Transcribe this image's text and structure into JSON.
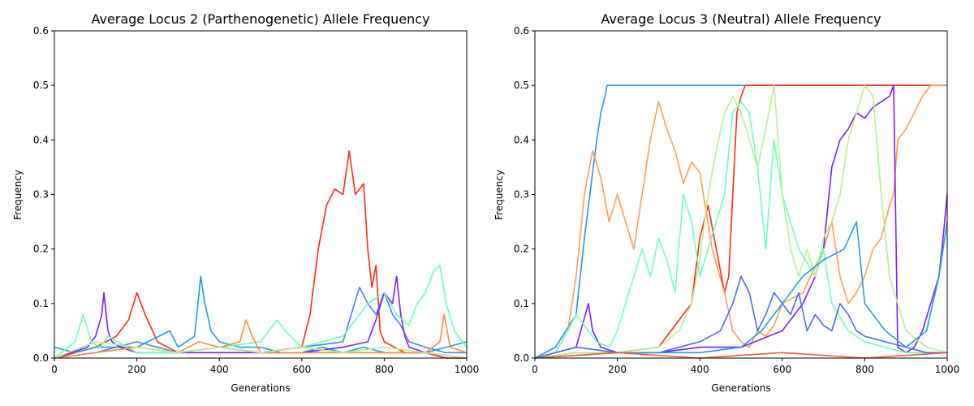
{
  "chart_data": [
    {
      "type": "line",
      "title": "Average Locus 2 (Parthenogenetic) Allele Frequency",
      "xlabel": "Generations",
      "ylabel": "Frequency",
      "xlim": [
        0,
        1000
      ],
      "ylim": [
        0,
        0.6
      ],
      "xticks": [
        "0",
        "200",
        "400",
        "600",
        "800",
        "1000"
      ],
      "yticks": [
        "0.0",
        "0.1",
        "0.2",
        "0.3",
        "0.4",
        "0.5",
        "0.6"
      ],
      "grid": false,
      "series": [
        {
          "color": "#ff2a10",
          "x": [
            0,
            50,
            100,
            150,
            180,
            200,
            220,
            250,
            300,
            400,
            500,
            600,
            620,
            640,
            660,
            680,
            700,
            715,
            730,
            750,
            760,
            770,
            780,
            790,
            800,
            850,
            900,
            950,
            1000
          ],
          "y": [
            0,
            0.01,
            0.02,
            0.04,
            0.07,
            0.12,
            0.08,
            0.03,
            0.01,
            0.02,
            0.01,
            0.02,
            0.08,
            0.2,
            0.28,
            0.31,
            0.3,
            0.38,
            0.3,
            0.32,
            0.2,
            0.13,
            0.17,
            0.05,
            0.03,
            0.01,
            0.01,
            0,
            0
          ]
        },
        {
          "color": "#4a7fff",
          "x": [
            0,
            100,
            200,
            250,
            300,
            400,
            500,
            600,
            700,
            740,
            760,
            780,
            800,
            820,
            840,
            860,
            900,
            950,
            1000
          ],
          "y": [
            0,
            0.01,
            0.03,
            0.02,
            0.01,
            0.02,
            0.01,
            0.02,
            0.03,
            0.13,
            0.1,
            0.08,
            0.12,
            0.08,
            0.06,
            0.03,
            0.02,
            0.01,
            0.01
          ]
        },
        {
          "color": "#1a9fe8",
          "x": [
            0,
            50,
            100,
            200,
            280,
            300,
            340,
            355,
            365,
            380,
            400,
            450,
            500,
            550,
            600,
            650,
            700,
            750,
            800,
            850,
            900,
            950,
            1000
          ],
          "y": [
            0.02,
            0.01,
            0.02,
            0.02,
            0.05,
            0.02,
            0.04,
            0.15,
            0.1,
            0.05,
            0.03,
            0.02,
            0.02,
            0.01,
            0.01,
            0.02,
            0.01,
            0.02,
            0.01,
            0.01,
            0.01,
            0.02,
            0.03
          ]
        },
        {
          "color": "#7a1fff",
          "x": [
            0,
            80,
            100,
            115,
            120,
            130,
            140,
            160,
            200,
            300,
            400,
            500,
            600,
            700,
            760,
            780,
            800,
            820,
            830,
            840,
            850,
            860,
            900,
            1000
          ],
          "y": [
            0,
            0.02,
            0.04,
            0.08,
            0.12,
            0.05,
            0.03,
            0.02,
            0.01,
            0.01,
            0.01,
            0.01,
            0.01,
            0.02,
            0.03,
            0.07,
            0.12,
            0.1,
            0.15,
            0.08,
            0.04,
            0.02,
            0.01,
            0
          ]
        },
        {
          "color": "#66ffb3",
          "x": [
            0,
            50,
            70,
            90,
            110,
            130,
            200,
            300,
            400,
            500,
            540,
            560,
            600,
            700,
            760,
            800,
            830,
            860,
            880,
            900,
            920,
            935,
            950,
            970,
            1000
          ],
          "y": [
            0,
            0.03,
            0.08,
            0.03,
            0.02,
            0.04,
            0.01,
            0.01,
            0.02,
            0.03,
            0.07,
            0.05,
            0.02,
            0.04,
            0.1,
            0.12,
            0.08,
            0.06,
            0.1,
            0.12,
            0.16,
            0.17,
            0.1,
            0.05,
            0.02
          ]
        },
        {
          "color": "#ff8a3a",
          "x": [
            0,
            100,
            200,
            300,
            350,
            400,
            450,
            465,
            480,
            500,
            600,
            700,
            800,
            900,
            935,
            945,
            960,
            1000
          ],
          "y": [
            0,
            0.01,
            0.02,
            0.01,
            0.03,
            0.02,
            0.03,
            0.07,
            0.04,
            0.01,
            0.01,
            0.01,
            0.01,
            0.01,
            0.03,
            0.08,
            0.02,
            0.01
          ]
        },
        {
          "color": "#b8f08a",
          "x": [
            0,
            100,
            200,
            300,
            400,
            500,
            600,
            700,
            800,
            900,
            1000
          ],
          "y": [
            0,
            0.03,
            0.02,
            0.01,
            0.02,
            0.01,
            0.02,
            0.01,
            0.02,
            0.01,
            0
          ]
        }
      ]
    },
    {
      "type": "line",
      "title": "Average Locus 3 (Neutral) Allele Frequency",
      "xlabel": "Generations",
      "ylabel": "Frequency",
      "xlim": [
        0,
        1000
      ],
      "ylim": [
        0,
        0.6
      ],
      "xticks": [
        "0",
        "200",
        "400",
        "600",
        "800",
        "1000"
      ],
      "yticks": [
        "0.0",
        "0.1",
        "0.2",
        "0.3",
        "0.4",
        "0.5",
        "0.6"
      ],
      "grid": false,
      "series": [
        {
          "color": "#2a8ff0",
          "x": [
            0,
            50,
            100,
            120,
            140,
            150,
            160,
            170,
            175,
            180,
            300,
            500,
            600,
            800,
            1000
          ],
          "y": [
            0,
            0.02,
            0.08,
            0.22,
            0.34,
            0.4,
            0.45,
            0.48,
            0.5,
            0.5,
            0.5,
            0.5,
            0.5,
            0.5,
            0.5
          ]
        },
        {
          "color": "#ff2a10",
          "x": [
            0,
            100,
            200,
            300,
            380,
            400,
            420,
            440,
            460,
            470,
            480,
            490,
            500,
            510,
            520,
            600,
            800,
            1000
          ],
          "y": [
            0,
            0.01,
            0.01,
            0.02,
            0.1,
            0.22,
            0.28,
            0.2,
            0.12,
            0.15,
            0.3,
            0.45,
            0.48,
            0.5,
            0.5,
            0.5,
            0.5,
            0.5
          ]
        },
        {
          "color": "#ff9a50",
          "x": [
            0,
            50,
            80,
            100,
            120,
            140,
            160,
            180,
            200,
            220,
            240,
            260,
            280,
            300,
            320,
            340,
            360,
            380,
            400,
            430,
            460,
            480,
            500,
            520,
            540,
            560,
            580,
            600,
            650,
            700,
            720,
            740,
            760,
            780,
            800,
            820,
            840,
            860,
            870,
            880,
            900,
            920,
            940,
            960,
            980,
            1000
          ],
          "y": [
            0,
            0.01,
            0.05,
            0.15,
            0.3,
            0.38,
            0.33,
            0.25,
            0.3,
            0.25,
            0.2,
            0.3,
            0.4,
            0.47,
            0.42,
            0.38,
            0.32,
            0.36,
            0.34,
            0.2,
            0.12,
            0.05,
            0.03,
            0.02,
            0.05,
            0.04,
            0.06,
            0.1,
            0.12,
            0.2,
            0.25,
            0.15,
            0.1,
            0.12,
            0.15,
            0.2,
            0.22,
            0.28,
            0.3,
            0.4,
            0.42,
            0.45,
            0.48,
            0.5,
            0.5,
            0.5
          ]
        },
        {
          "color": "#7a1fff",
          "x": [
            0,
            100,
            130,
            140,
            160,
            200,
            300,
            400,
            500,
            600,
            650,
            680,
            700,
            720,
            740,
            760,
            780,
            800,
            820,
            840,
            860,
            870,
            880,
            900,
            920,
            940,
            960,
            980,
            990,
            1000
          ],
          "y": [
            0,
            0.02,
            0.1,
            0.05,
            0.02,
            0.01,
            0.01,
            0.02,
            0.02,
            0.05,
            0.1,
            0.15,
            0.2,
            0.35,
            0.4,
            0.42,
            0.45,
            0.44,
            0.46,
            0.47,
            0.48,
            0.5,
            0.02,
            0.01,
            0.02,
            0.05,
            0.1,
            0.15,
            0.22,
            0.3
          ]
        },
        {
          "color": "#6affc0",
          "x": [
            0,
            50,
            80,
            100,
            120,
            150,
            180,
            200,
            220,
            240,
            260,
            280,
            300,
            320,
            340,
            360,
            380,
            400,
            420,
            440,
            460,
            480,
            500,
            520,
            540,
            560,
            580,
            600,
            640,
            680,
            700,
            720,
            760,
            800,
            850,
            900,
            950,
            1000
          ],
          "y": [
            0,
            0.01,
            0.05,
            0.08,
            0.06,
            0.03,
            0.02,
            0.05,
            0.1,
            0.15,
            0.2,
            0.15,
            0.22,
            0.18,
            0.12,
            0.3,
            0.25,
            0.15,
            0.2,
            0.25,
            0.3,
            0.45,
            0.47,
            0.45,
            0.35,
            0.2,
            0.4,
            0.3,
            0.2,
            0.15,
            0.2,
            0.1,
            0.05,
            0.03,
            0.02,
            0.01,
            0.01,
            0.01
          ]
        },
        {
          "color": "#b8f08a",
          "x": [
            0,
            100,
            200,
            300,
            350,
            380,
            400,
            420,
            440,
            460,
            480,
            500,
            520,
            540,
            560,
            580,
            600,
            620,
            640,
            660,
            680,
            700,
            720,
            740,
            760,
            780,
            800,
            820,
            840,
            860,
            900,
            950,
            1000
          ],
          "y": [
            0,
            0.01,
            0.01,
            0.02,
            0.05,
            0.1,
            0.18,
            0.3,
            0.38,
            0.45,
            0.48,
            0.45,
            0.4,
            0.35,
            0.42,
            0.5,
            0.3,
            0.2,
            0.15,
            0.2,
            0.15,
            0.22,
            0.25,
            0.3,
            0.4,
            0.45,
            0.5,
            0.48,
            0.3,
            0.15,
            0.05,
            0.02,
            0.01
          ]
        },
        {
          "color": "#4a6af0",
          "x": [
            0,
            100,
            200,
            300,
            400,
            450,
            480,
            500,
            520,
            540,
            560,
            580,
            600,
            620,
            640,
            660,
            680,
            700,
            720,
            740,
            760,
            780,
            800,
            850,
            900,
            950,
            1000
          ],
          "y": [
            0,
            0.02,
            0.01,
            0.01,
            0.03,
            0.05,
            0.1,
            0.15,
            0.12,
            0.05,
            0.08,
            0.12,
            0.1,
            0.08,
            0.12,
            0.05,
            0.08,
            0.06,
            0.05,
            0.1,
            0.08,
            0.05,
            0.04,
            0.03,
            0.02,
            0.01,
            0.01
          ]
        },
        {
          "color": "#1aa0e0",
          "x": [
            0,
            200,
            400,
            500,
            550,
            600,
            650,
            700,
            750,
            780,
            800,
            850,
            900,
            950,
            980,
            1000
          ],
          "y": [
            0,
            0.01,
            0.01,
            0.02,
            0.05,
            0.1,
            0.15,
            0.18,
            0.2,
            0.25,
            0.1,
            0.05,
            0.02,
            0.05,
            0.15,
            0.25
          ]
        },
        {
          "color": "#ff5a30",
          "x": [
            0,
            200,
            400,
            600,
            800,
            1000
          ],
          "y": [
            0,
            0.01,
            0,
            0.01,
            0,
            0.01
          ]
        }
      ]
    }
  ]
}
